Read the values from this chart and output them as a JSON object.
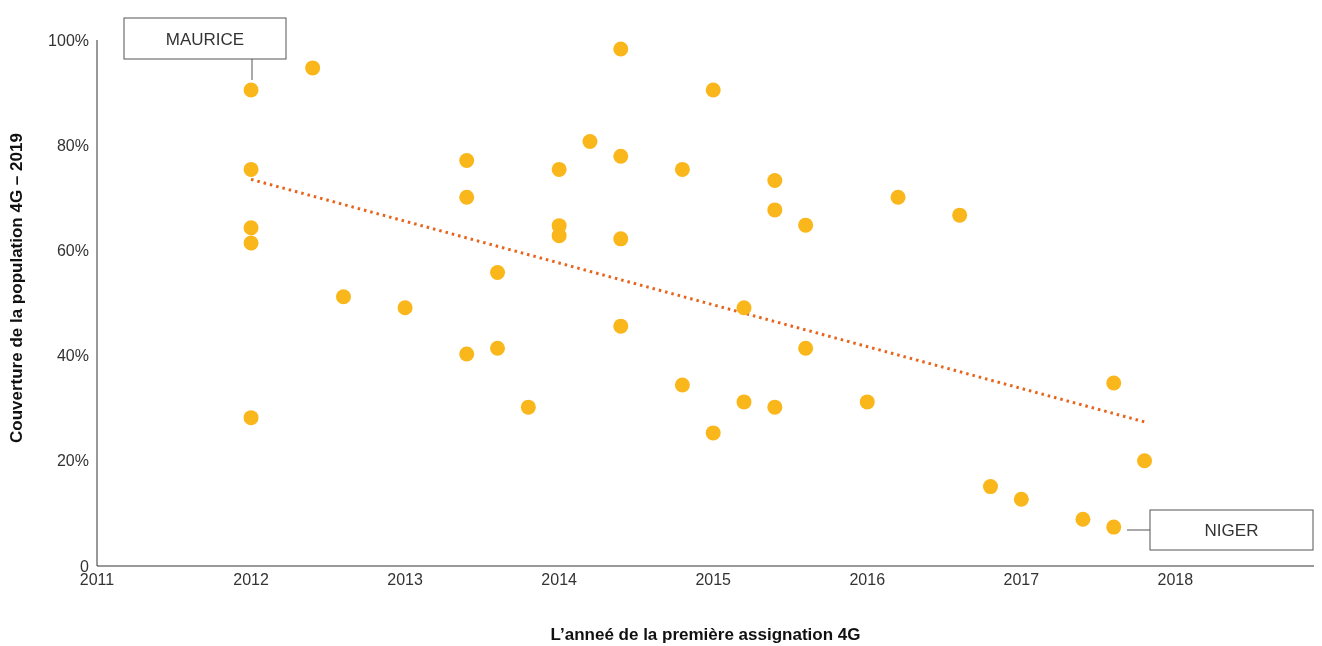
{
  "chart_data": {
    "type": "scatter",
    "xlabel": "L’anneé de la première assignation 4G",
    "ylabel": "Couverture de la population 4G – 2019",
    "xlim": [
      2011,
      2018.9
    ],
    "xticks": [
      2011,
      2012,
      2013,
      2014,
      2015,
      2016,
      2017,
      2018
    ],
    "ylim": [
      0,
      100
    ],
    "yticks": [
      0,
      {
        "value": 20,
        "label": "20%"
      },
      {
        "value": 40,
        "label": "40%"
      },
      {
        "value": 60,
        "label": "60%"
      },
      {
        "value": 80,
        "label": "80%"
      },
      {
        "value": 100,
        "label": "100%"
      }
    ],
    "grid": false,
    "legend": false,
    "series": [
      {
        "type": "scatter",
        "marker": "circle",
        "color": "#f9b71c",
        "x": [
          2012,
          2012,
          2012,
          2012,
          2012,
          2012.4,
          2012.6,
          2013,
          2013.4,
          2013.4,
          2013.4,
          2013.6,
          2013.6,
          2013.8,
          2014,
          2014,
          2014,
          2014.2,
          2014.4,
          2014.4,
          2014.4,
          2014.4,
          2014.8,
          2014.8,
          2015,
          2015,
          2015.2,
          2015.2,
          2015.4,
          2015.4,
          2015.4,
          2015.6,
          2015.6,
          2016,
          2016.2,
          2016.6,
          2016.8,
          2017,
          2017.4,
          2017.6,
          2017.6,
          2017.8
        ],
        "values": [
          90.5,
          75.4,
          64.3,
          61.4,
          28.2,
          94.7,
          51.2,
          49.1,
          77.1,
          70.1,
          40.3,
          55.8,
          41.4,
          30.2,
          75.4,
          64.7,
          62.8,
          80.7,
          98.3,
          77.9,
          62.2,
          45.6,
          75.4,
          34.4,
          90.5,
          25.3,
          49.1,
          31.2,
          73.3,
          67.7,
          30.2,
          64.8,
          41.4,
          31.2,
          70.1,
          66.7,
          15.1,
          12.7,
          8.9,
          34.8,
          7.4,
          20.0
        ]
      },
      {
        "type": "line",
        "marker": "none",
        "color": "#e8641b",
        "line_style": "dotted",
        "x": [
          2012,
          2017.8
        ],
        "values": [
          73.5,
          27.4
        ]
      }
    ],
    "annotations": [
      "MAURICE",
      "NIGER"
    ]
  }
}
